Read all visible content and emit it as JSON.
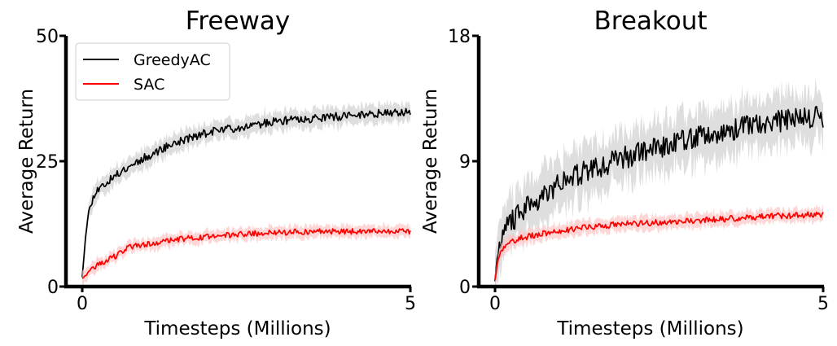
{
  "chart_data": [
    {
      "type": "line",
      "title": "Freeway",
      "xlabel": "Timesteps (Millions)",
      "ylabel": "Average Return",
      "xlim": [
        0,
        5
      ],
      "ylim": [
        0,
        50
      ],
      "xticks": [
        "0",
        "5"
      ],
      "yticks": [
        "0",
        "25",
        "50"
      ],
      "grid": false,
      "legend": {
        "placement": "top-left",
        "entries": [
          "GreedyAC",
          "SAC"
        ]
      },
      "series": [
        {
          "name": "GreedyAC",
          "color": "#000000",
          "band_color": "#cccccc",
          "x": [
            0,
            0.05,
            0.1,
            0.2,
            0.3,
            0.5,
            0.7,
            1.0,
            1.3,
            1.6,
            2.0,
            2.5,
            3.0,
            3.5,
            4.0,
            4.5,
            5.0
          ],
          "y": [
            2,
            10,
            15,
            19,
            20,
            22,
            24,
            26,
            28,
            29.5,
            31,
            32,
            33,
            33.5,
            34,
            34.5,
            35
          ],
          "band_halfwidth": 1.5
        },
        {
          "name": "SAC",
          "color": "#ff0000",
          "band_color": "#ffc0c0",
          "x": [
            0,
            0.1,
            0.2,
            0.35,
            0.5,
            0.7,
            1.0,
            1.5,
            2.0,
            2.5,
            3.0,
            3.5,
            4.0,
            4.5,
            5.0
          ],
          "y": [
            1.5,
            3,
            4,
            5,
            6,
            7.8,
            8.5,
            9.5,
            10,
            10.5,
            10.8,
            11,
            11,
            11,
            11
          ],
          "band_halfwidth": 1.0
        }
      ]
    },
    {
      "type": "line",
      "title": "Breakout",
      "xlabel": "Timesteps (Millions)",
      "ylabel": "Average Return",
      "xlim": [
        0,
        5
      ],
      "ylim": [
        0,
        18
      ],
      "xticks": [
        "0",
        "5"
      ],
      "yticks": [
        "0",
        "9",
        "18"
      ],
      "grid": false,
      "legend": null,
      "series": [
        {
          "name": "GreedyAC",
          "color": "#000000",
          "band_color": "#cccccc",
          "x": [
            0,
            0.05,
            0.1,
            0.2,
            0.4,
            0.7,
            1.0,
            1.5,
            2.0,
            2.5,
            3.0,
            3.5,
            4.0,
            4.5,
            5.0
          ],
          "y": [
            0.5,
            2.5,
            3.5,
            4.5,
            5.3,
            6.5,
            7.5,
            8.5,
            9.3,
            10,
            10.7,
            11.2,
            11.7,
            12,
            12.2
          ],
          "band_halfwidth": 1.5
        },
        {
          "name": "SAC",
          "color": "#ff0000",
          "band_color": "#ffc0c0",
          "x": [
            0,
            0.05,
            0.1,
            0.2,
            0.4,
            0.7,
            1.0,
            1.5,
            2.0,
            2.5,
            3.0,
            3.5,
            4.0,
            4.5,
            5.0
          ],
          "y": [
            0.5,
            2,
            2.6,
            3.1,
            3.5,
            3.8,
            4.0,
            4.3,
            4.5,
            4.6,
            4.7,
            4.85,
            5.0,
            5.1,
            5.2
          ],
          "band_halfwidth": 0.4
        }
      ]
    }
  ]
}
